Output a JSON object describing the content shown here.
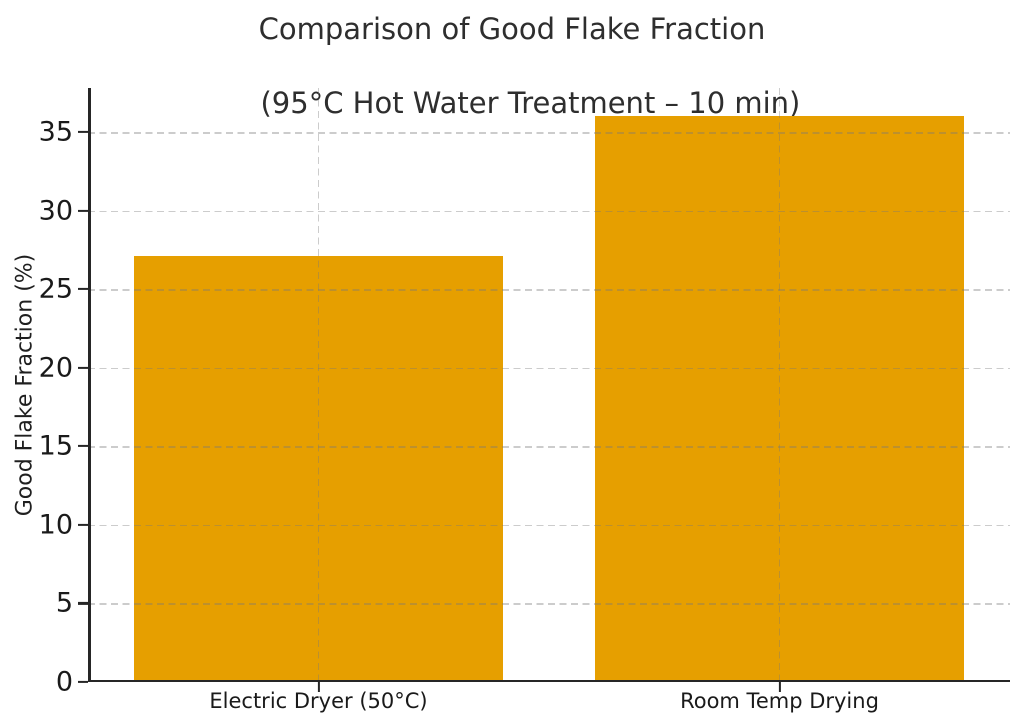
{
  "title": {
    "line1": "Comparison of Good Flake Fraction",
    "line2": "(95°C Hot Water Treatment – 10 min)"
  },
  "chart_data": {
    "type": "bar",
    "title": "Comparison of Good Flake Fraction (95°C Hot Water Treatment – 10 min)",
    "categories": [
      "Electric Dryer (50°C)",
      "Room Temp Drying"
    ],
    "values": [
      27.1,
      36.0
    ],
    "xlabel": "",
    "ylabel": "Good Flake Fraction (%)",
    "yticks": [
      0,
      5,
      10,
      15,
      20,
      25,
      30,
      35
    ],
    "ytick_labels": [
      "0",
      "5",
      "10",
      "15",
      "20",
      "25",
      "30",
      "35"
    ],
    "ylim": [
      0,
      37.8
    ],
    "bar_color": "#E69F00",
    "bar_width_fraction": 0.8,
    "grid": {
      "show": true,
      "style": "dashed",
      "axes": "both",
      "color": "#c8c8c8"
    },
    "legend_position": "none",
    "background_color": "#ffffff",
    "spines": [
      "left",
      "bottom"
    ]
  }
}
